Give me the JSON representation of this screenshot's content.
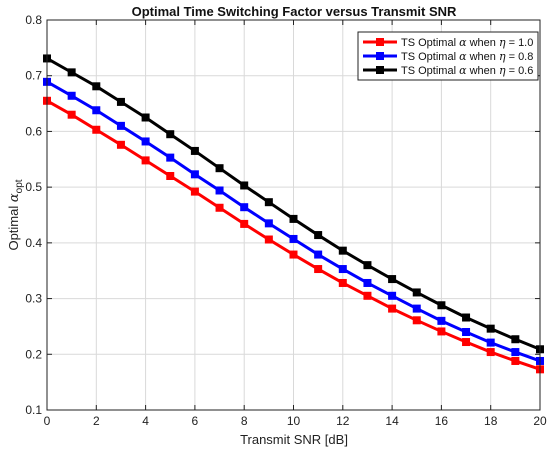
{
  "chart_data": {
    "type": "line",
    "title": "Optimal Time Switching Factor versus Transmit SNR",
    "xlabel": "Transmit SNR [dB]",
    "ylabel_main": "Optimal ",
    "ylabel_symbol": "α",
    "ylabel_sub": "opt",
    "xlim": [
      0,
      20
    ],
    "ylim": [
      0.1,
      0.8
    ],
    "xticks": [
      "0",
      "2",
      "4",
      "6",
      "8",
      "10",
      "12",
      "14",
      "16",
      "18",
      "20"
    ],
    "yticks": [
      "0.1",
      "0.2",
      "0.3",
      "0.4",
      "0.5",
      "0.6",
      "0.7",
      "0.8"
    ],
    "grid": true,
    "legend_position": "top-right",
    "x": [
      0,
      1,
      2,
      3,
      4,
      5,
      6,
      7,
      8,
      9,
      10,
      11,
      12,
      13,
      14,
      15,
      16,
      17,
      18,
      19,
      20
    ],
    "series": [
      {
        "legend_prefix": "TS Optimal ",
        "legend_alpha": "α",
        "legend_mid": " when ",
        "legend_eta": "η",
        "legend_value": " = 1.0",
        "color": "#ff0000",
        "values": [
          0.655,
          0.63,
          0.603,
          0.576,
          0.548,
          0.52,
          0.492,
          0.463,
          0.434,
          0.406,
          0.379,
          0.353,
          0.328,
          0.305,
          0.282,
          0.261,
          0.241,
          0.222,
          0.204,
          0.188,
          0.173
        ]
      },
      {
        "legend_prefix": "TS Optimal ",
        "legend_alpha": "α",
        "legend_mid": " when ",
        "legend_eta": "η",
        "legend_value": " = 0.8",
        "color": "#0000ff",
        "values": [
          0.689,
          0.664,
          0.638,
          0.61,
          0.582,
          0.553,
          0.523,
          0.494,
          0.464,
          0.435,
          0.407,
          0.379,
          0.353,
          0.328,
          0.305,
          0.282,
          0.26,
          0.24,
          0.221,
          0.204,
          0.188
        ]
      },
      {
        "legend_prefix": "TS Optimal ",
        "legend_alpha": "α",
        "legend_mid": " when ",
        "legend_eta": "η",
        "legend_value": " = 0.6",
        "color": "#000000",
        "values": [
          0.731,
          0.706,
          0.681,
          0.653,
          0.625,
          0.595,
          0.565,
          0.534,
          0.503,
          0.473,
          0.443,
          0.414,
          0.386,
          0.36,
          0.335,
          0.311,
          0.288,
          0.266,
          0.246,
          0.227,
          0.209
        ]
      }
    ]
  }
}
